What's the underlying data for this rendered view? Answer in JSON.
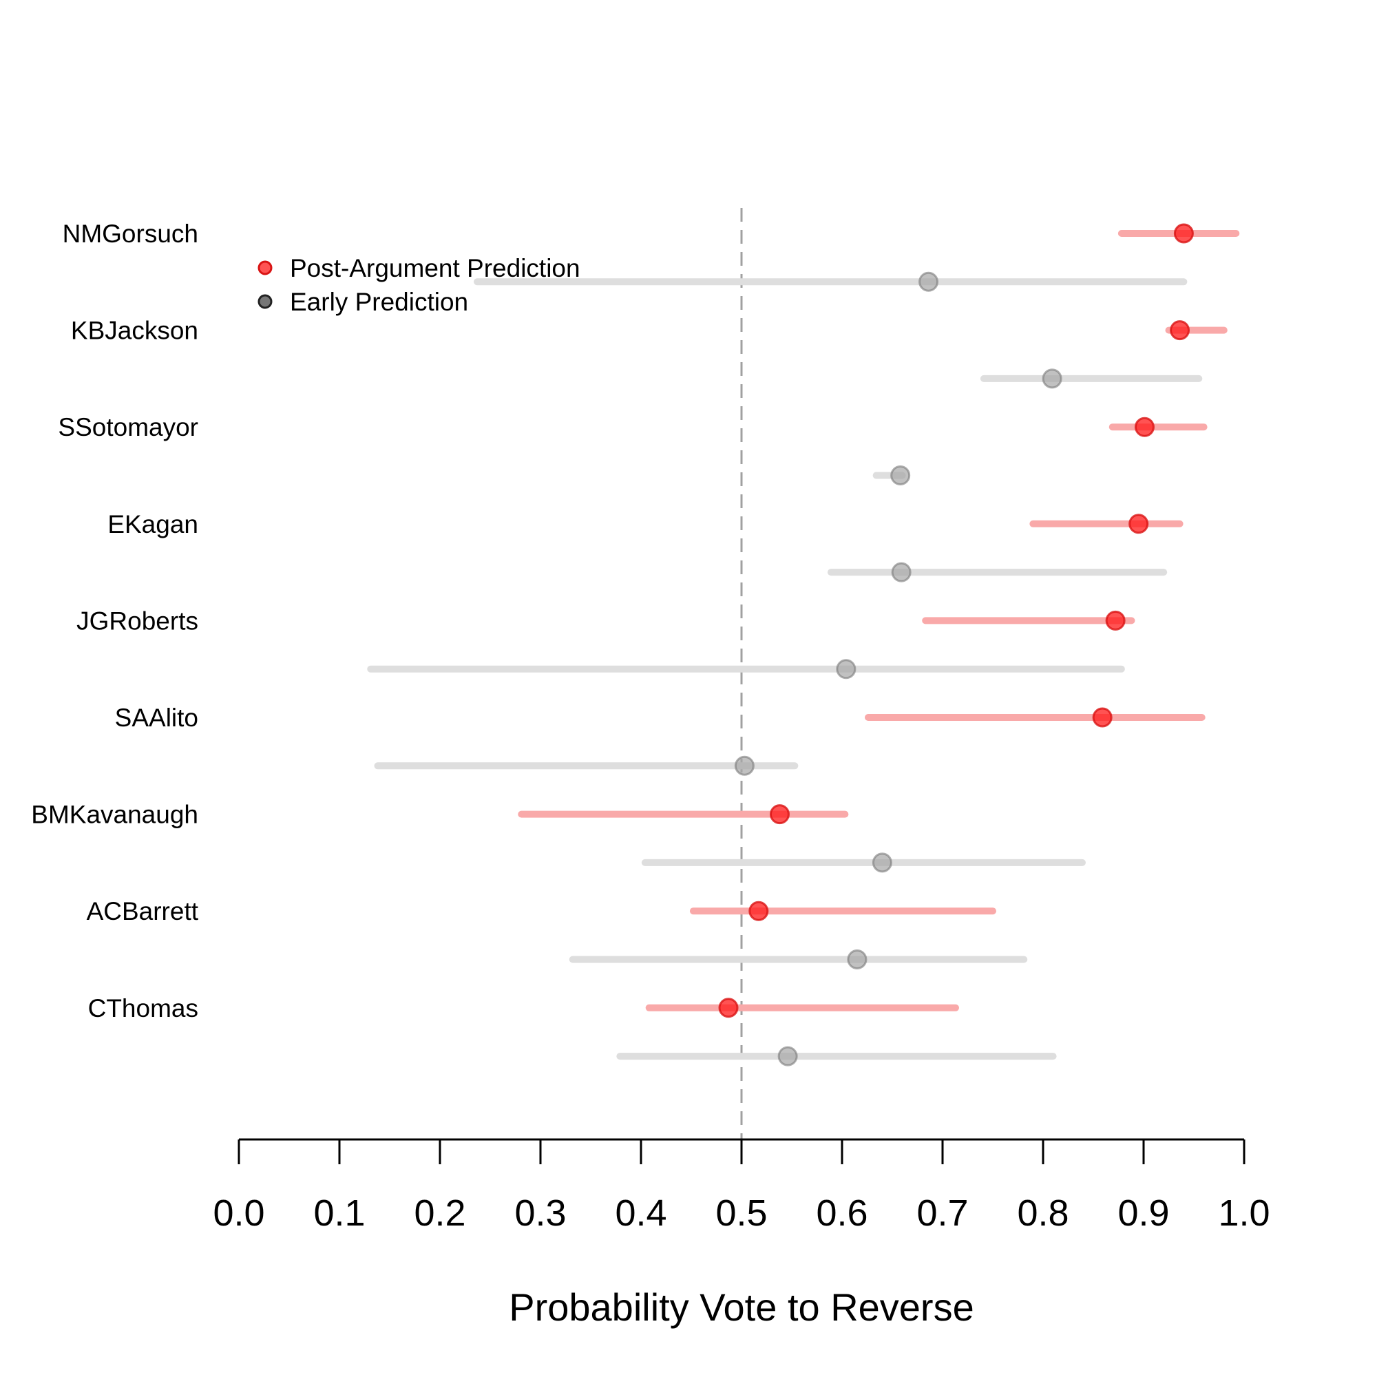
{
  "chart_data": {
    "type": "dot-interval",
    "xlabel": "Probability Vote to Reverse",
    "xlim": [
      0.0,
      1.0
    ],
    "x_ticks": [
      0.0,
      0.1,
      0.2,
      0.3,
      0.4,
      0.5,
      0.6,
      0.7,
      0.8,
      0.9,
      1.0
    ],
    "x_tick_labels": [
      "0.0",
      "0.1",
      "0.2",
      "0.3",
      "0.4",
      "0.5",
      "0.6",
      "0.7",
      "0.8",
      "0.9",
      "1.0"
    ],
    "reference_line": 0.5,
    "legend": {
      "position": "top-left",
      "entries": [
        {
          "label": "Post-Argument Prediction",
          "series": "post"
        },
        {
          "label": "Early Prediction",
          "series": "early"
        }
      ]
    },
    "series_colors": {
      "post_point": "#ff1a1a",
      "post_line": "#f9a9a9",
      "early_point": "#a6a6a6",
      "early_line": "#dedede",
      "reference": "#a0a0a0"
    },
    "justices": [
      {
        "name": "NMGorsuch",
        "post": {
          "est": 0.94,
          "low": 0.878,
          "high": 0.992
        },
        "early": {
          "est": 0.686,
          "low": 0.237,
          "high": 0.94
        }
      },
      {
        "name": "KBJackson",
        "post": {
          "est": 0.936,
          "low": 0.925,
          "high": 0.98
        },
        "early": {
          "est": 0.809,
          "low": 0.741,
          "high": 0.955
        }
      },
      {
        "name": "SSotomayor",
        "post": {
          "est": 0.901,
          "low": 0.869,
          "high": 0.96
        },
        "early": {
          "est": 0.658,
          "low": 0.634,
          "high": 0.66
        }
      },
      {
        "name": "EKagan",
        "post": {
          "est": 0.895,
          "low": 0.79,
          "high": 0.936
        },
        "early": {
          "est": 0.659,
          "low": 0.589,
          "high": 0.92
        }
      },
      {
        "name": "JGRoberts",
        "post": {
          "est": 0.872,
          "low": 0.683,
          "high": 0.888
        },
        "early": {
          "est": 0.604,
          "low": 0.131,
          "high": 0.878
        }
      },
      {
        "name": "SAAlito",
        "post": {
          "est": 0.859,
          "low": 0.626,
          "high": 0.958
        },
        "early": {
          "est": 0.503,
          "low": 0.138,
          "high": 0.553
        }
      },
      {
        "name": "BMKavanaugh",
        "post": {
          "est": 0.538,
          "low": 0.281,
          "high": 0.603
        },
        "early": {
          "est": 0.64,
          "low": 0.404,
          "high": 0.839
        }
      },
      {
        "name": "ACBarrett",
        "post": {
          "est": 0.517,
          "low": 0.452,
          "high": 0.75
        },
        "early": {
          "est": 0.615,
          "low": 0.332,
          "high": 0.781
        }
      },
      {
        "name": "CThomas",
        "post": {
          "est": 0.487,
          "low": 0.408,
          "high": 0.713
        },
        "early": {
          "est": 0.546,
          "low": 0.379,
          "high": 0.81
        }
      }
    ]
  }
}
